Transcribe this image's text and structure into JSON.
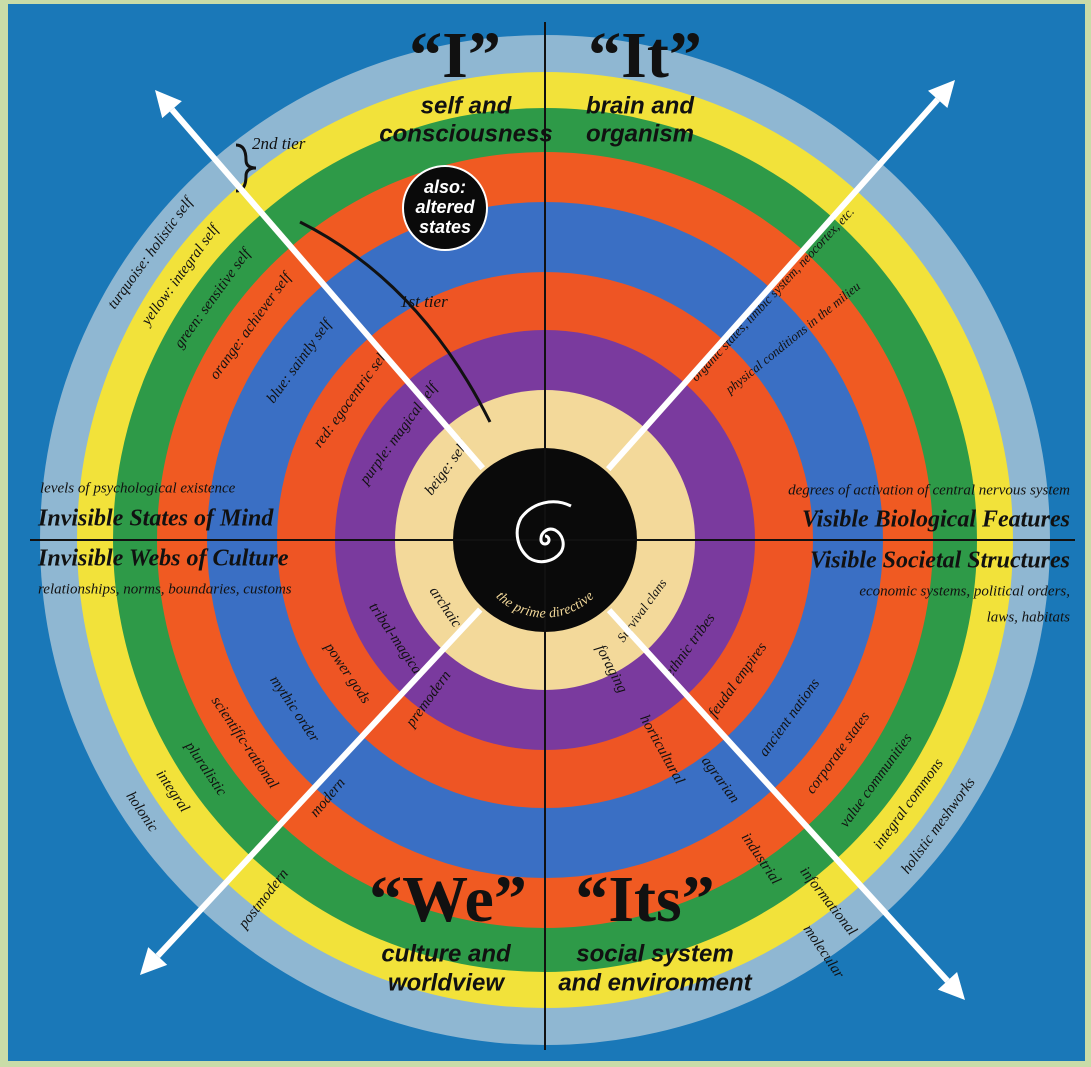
{
  "center": {
    "label": "the prime directive",
    "badge": [
      "also:",
      "altered",
      "states"
    ]
  },
  "tiers": {
    "second": "2nd tier",
    "first": "1st tier"
  },
  "quadrants": {
    "upper_left": {
      "title": "“I”",
      "caption": [
        "self and",
        "consciousness"
      ],
      "axis_note": "levels of psychological existence",
      "axis_title": "Invisible States of Mind",
      "levels": [
        "beige: self",
        "purple: magical self",
        "red: egocentric self",
        "blue: saintly self",
        "orange: achiever self",
        "green: sensitive self",
        "yellow: integral self",
        "turquoise: holistic self"
      ]
    },
    "upper_right": {
      "title": "“It”",
      "caption": [
        "brain and",
        "organism"
      ],
      "axis_note": "degrees of activation of central nervous system",
      "axis_title": "Visible Biological Features",
      "levels": [
        "organic states, limbic system, neocortex, etc.",
        "physical conditions in the milieu"
      ]
    },
    "lower_left": {
      "title": "“We”",
      "caption": [
        "culture and",
        "worldview"
      ],
      "axis_title": "Invisible Webs of Culture",
      "axis_note": "relationships, norms, boundaries, customs",
      "levels": [
        "archaic",
        "tribal-magical",
        "power gods",
        "mythic order",
        "scientific-rational",
        "pluralistic",
        "integral",
        "holonic"
      ],
      "eras": [
        "premodern",
        "modern",
        "postmodern"
      ]
    },
    "lower_right": {
      "title": "“Its”",
      "caption": [
        "social system",
        "and environment"
      ],
      "axis_title": "Visible Societal Structures",
      "axis_note": [
        "economic systems, political orders,",
        "laws, habitats"
      ],
      "levels": [
        "Survival clans",
        "ethnic tribes",
        "feudal empires",
        "ancient nations",
        "corporate states",
        "value communities",
        "integral commons",
        "holistic meshworks"
      ],
      "eras": [
        "foraging",
        "horticultural",
        "agrarian",
        "industrial",
        "informational",
        "molecular"
      ]
    }
  }
}
